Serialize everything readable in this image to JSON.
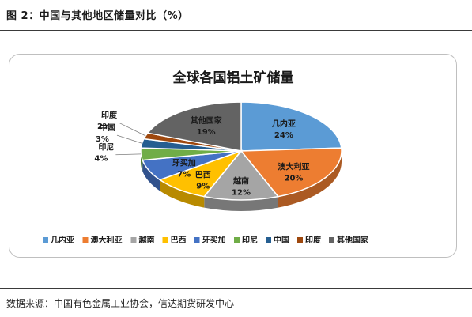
{
  "figure_title": "图 2：中国与其他地区储量对比（%）",
  "source": "数据来源：中国有色金属工业协会，信达期货研发中心",
  "chart_data": {
    "type": "pie",
    "title": "全球各国铝土矿储量",
    "labels": [
      "几内亚",
      "澳大利亚",
      "越南",
      "巴西",
      "牙买加",
      "印尼",
      "中国",
      "印度",
      "其他国家"
    ],
    "values": [
      24,
      20,
      12,
      9,
      7,
      4,
      3,
      2,
      19
    ],
    "value_labels": [
      "24%",
      "20%",
      "12%",
      "9%",
      "7%",
      "4%",
      "3%",
      "2%",
      "19%"
    ],
    "colors": [
      "#5b9bd5",
      "#ed7d31",
      "#a5a5a5",
      "#ffc000",
      "#4472c4",
      "#70ad47",
      "#255e91",
      "#9e480e",
      "#636363"
    ],
    "legend_position": "bottom"
  }
}
